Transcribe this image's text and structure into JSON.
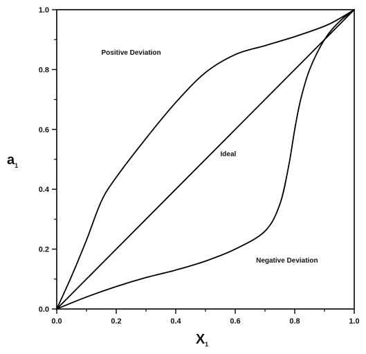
{
  "chart_data": {
    "type": "line",
    "title": "",
    "xlabel": "X",
    "xlabel_sub": "1",
    "ylabel": "a",
    "ylabel_sub": "1",
    "xlim": [
      0,
      1
    ],
    "ylim": [
      0,
      1
    ],
    "grid": false,
    "x_ticks": [
      "0.0",
      "0.2",
      "0.4",
      "0.6",
      "0.8",
      "1.0"
    ],
    "y_ticks": [
      "0.0",
      "0.2",
      "0.4",
      "0.6",
      "0.8",
      "1.0"
    ],
    "series": [
      {
        "label": "Positive Deviation",
        "color": "#000000",
        "x": [
          0.0,
          0.05,
          0.1,
          0.15,
          0.2,
          0.3,
          0.4,
          0.5,
          0.6,
          0.7,
          0.8,
          0.9,
          0.95,
          1.0
        ],
        "y": [
          0.0,
          0.11,
          0.23,
          0.36,
          0.44,
          0.57,
          0.69,
          0.79,
          0.85,
          0.88,
          0.91,
          0.945,
          0.97,
          1.0
        ]
      },
      {
        "label": "Ideal",
        "color": "#000000",
        "x": [
          0.0,
          1.0
        ],
        "y": [
          0.0,
          1.0
        ]
      },
      {
        "label": "Negative Deviation",
        "color": "#000000",
        "x": [
          0.0,
          0.1,
          0.2,
          0.3,
          0.4,
          0.5,
          0.6,
          0.7,
          0.75,
          0.78,
          0.8,
          0.82,
          0.85,
          0.9,
          0.95,
          1.0
        ],
        "y": [
          0.0,
          0.04,
          0.075,
          0.105,
          0.13,
          0.16,
          0.2,
          0.26,
          0.35,
          0.48,
          0.6,
          0.7,
          0.8,
          0.9,
          0.96,
          1.0
        ]
      }
    ],
    "annotations": [
      {
        "text": "Positive Deviation",
        "x": 0.15,
        "y": 0.85
      },
      {
        "text": "Ideal",
        "x": 0.55,
        "y": 0.51
      },
      {
        "text": "Negative Deviation",
        "x": 0.67,
        "y": 0.155
      }
    ]
  }
}
